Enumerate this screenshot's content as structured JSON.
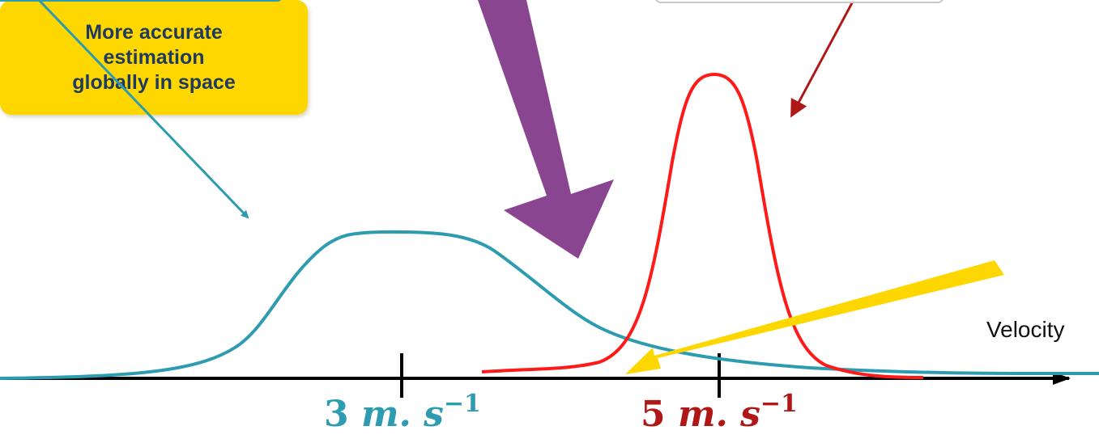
{
  "colors": {
    "blue": "#2e9cb0",
    "red": "#ff1a1a",
    "dark_red": "#b01818",
    "purple": "#8a4590",
    "yellow": "#ffd700",
    "axis": "#000000"
  },
  "yellow_callout": {
    "lines": [
      "More accurate",
      "estimation",
      "globally in space"
    ]
  },
  "axis": {
    "label": "Velocity"
  },
  "ticks": [
    {
      "number": "3",
      "unit": "m. s",
      "exponent": "−1"
    },
    {
      "number": "5",
      "unit": "m. s",
      "exponent": "−1"
    }
  ]
}
